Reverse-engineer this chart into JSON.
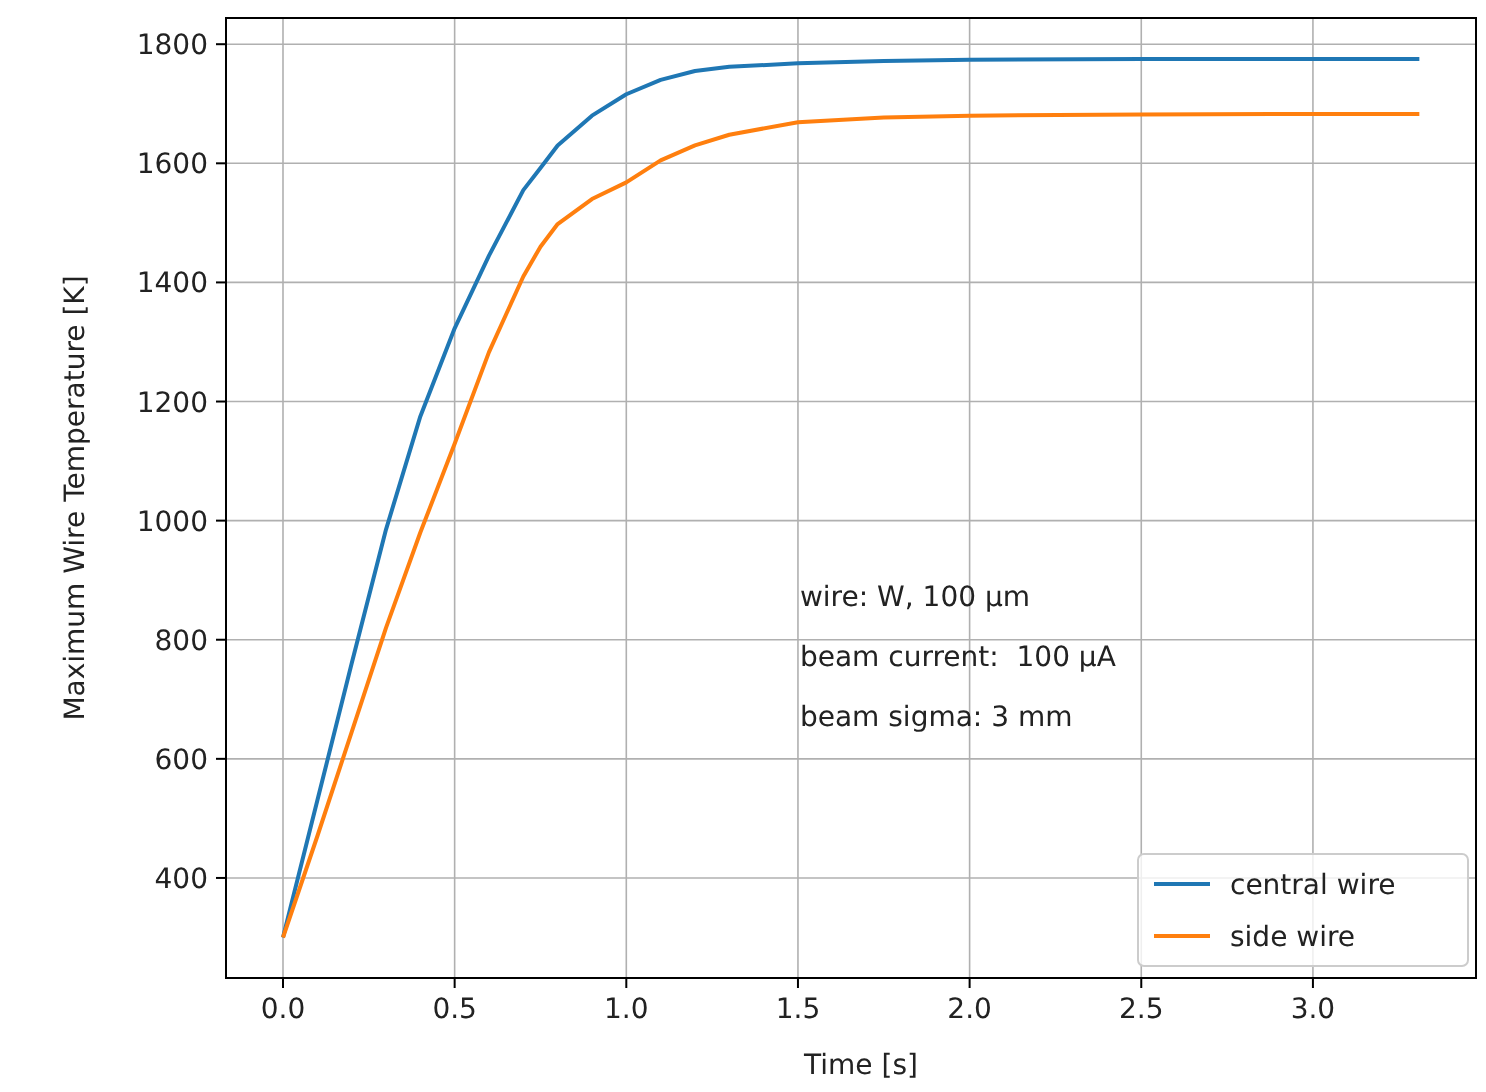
{
  "chart_data": {
    "type": "line",
    "xlabel": "Time [s]",
    "ylabel": "Maximum Wire Temperature [K]",
    "xlim": [
      -0.166,
      3.475
    ],
    "xticks": [
      {
        "value": 0,
        "label": "0.0"
      },
      {
        "value": 0.5,
        "label": "0.5"
      },
      {
        "value": 1,
        "label": "1.0"
      },
      {
        "value": 1.5,
        "label": "1.5"
      },
      {
        "value": 2,
        "label": "2.0"
      },
      {
        "value": 2.5,
        "label": "2.5"
      },
      {
        "value": 3,
        "label": "3.0"
      }
    ],
    "ylim": [
      232,
      1844
    ],
    "yticks": [
      400,
      600,
      800,
      1000,
      1200,
      1400,
      1600,
      1800
    ],
    "grid": true,
    "legend": "bottom right",
    "marker": "none",
    "line_style": "solid",
    "annotations": [
      "wire: W, 100 µm",
      "beam current:  100 µA",
      "beam sigma: 3 mm"
    ],
    "series": [
      {
        "name": "central wire",
        "color": "#1f77b4",
        "x": [
          0,
          0.1,
          0.2,
          0.3,
          0.4,
          0.5,
          0.6,
          0.7,
          0.75,
          0.8,
          0.9,
          1.0,
          1.1,
          1.2,
          1.3,
          1.5,
          1.75,
          2.0,
          2.5,
          3.0,
          3.31
        ],
        "values": [
          300,
          530,
          760,
          985,
          1175,
          1323,
          1445,
          1555,
          1592,
          1630,
          1680,
          1716,
          1740,
          1755,
          1762,
          1768,
          1772,
          1774,
          1775,
          1775,
          1775
        ]
      },
      {
        "name": "side wire",
        "color": "#ff7f0e",
        "x": [
          0,
          0.1,
          0.2,
          0.3,
          0.4,
          0.5,
          0.6,
          0.7,
          0.75,
          0.8,
          0.9,
          1.0,
          1.1,
          1.2,
          1.3,
          1.5,
          1.75,
          2.0,
          2.5,
          3.0,
          3.31
        ],
        "values": [
          300,
          470,
          645,
          820,
          980,
          1129,
          1283,
          1410,
          1460,
          1498,
          1540,
          1568,
          1605,
          1630,
          1648,
          1669,
          1677,
          1680,
          1682,
          1683,
          1683
        ]
      }
    ]
  }
}
